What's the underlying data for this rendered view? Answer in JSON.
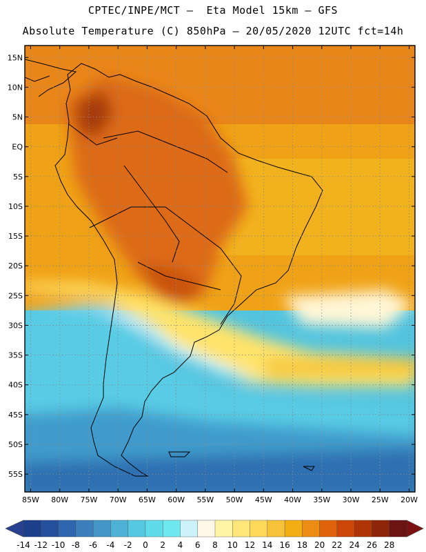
{
  "header": {
    "line1": "CPTEC/INPE/MCT –  Eta Model 15km – GFS",
    "line2": "Absolute Temperature (C) 850hPa – 20/05/2020 12UTC fct=14h"
  },
  "map": {
    "lon_range": [
      -86,
      -19
    ],
    "lat_range": [
      -58,
      17
    ],
    "lat_labels": [
      "15N",
      "10N",
      "5N",
      "EQ",
      "5S",
      "10S",
      "15S",
      "20S",
      "25S",
      "30S",
      "35S",
      "40S",
      "45S",
      "50S",
      "55S"
    ],
    "lat_values": [
      15,
      10,
      5,
      0,
      -5,
      -10,
      -15,
      -20,
      -25,
      -30,
      -35,
      -40,
      -45,
      -50,
      -55
    ],
    "lon_labels": [
      "85W",
      "80W",
      "75W",
      "70W",
      "65W",
      "60W",
      "55W",
      "50W",
      "45W",
      "40W",
      "35W",
      "30W",
      "25W",
      "20W"
    ],
    "lon_values": [
      -85,
      -80,
      -75,
      -70,
      -65,
      -60,
      -55,
      -50,
      -45,
      -40,
      -35,
      -30,
      -25,
      -20
    ]
  },
  "colorbar": {
    "labels": [
      "-14",
      "-12",
      "-10",
      "-8",
      "-6",
      "-4",
      "-2",
      "0",
      "2",
      "4",
      "6",
      "8",
      "10",
      "12",
      "14",
      "16",
      "18",
      "20",
      "22",
      "24",
      "26",
      "28"
    ],
    "colors": [
      "#1c3f8c",
      "#24509c",
      "#2f66ad",
      "#3b7fbd",
      "#4596c8",
      "#4eb2d6",
      "#55c8e2",
      "#5fdbea",
      "#6ee9f0",
      "#ccf2fa",
      "#fff8e8",
      "#fff5a5",
      "#ffe77a",
      "#ffd95a",
      "#f5c23a",
      "#f2ad12",
      "#eb8d12",
      "#e0620a",
      "#cc4608",
      "#b03506",
      "#8f2508",
      "#6a1414"
    ],
    "low_color": "#27408f",
    "high_color": "#7a1010"
  }
}
